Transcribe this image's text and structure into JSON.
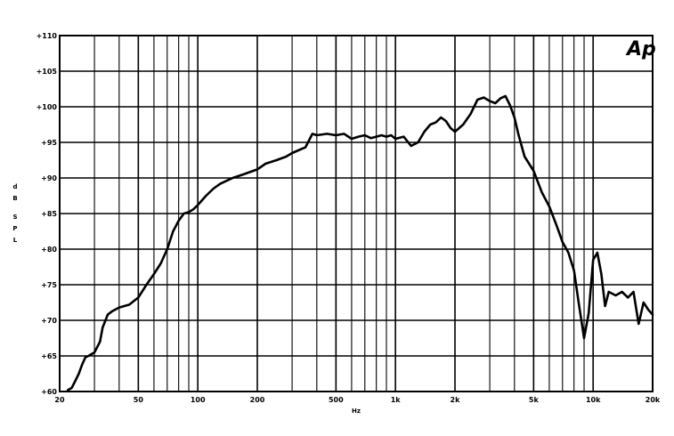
{
  "chart_data": {
    "type": "line",
    "logo": "Ap",
    "xlabel": "Hz",
    "ylabel": "dB SPL",
    "xscale": "log",
    "xlim": [
      20,
      20000
    ],
    "ylim": [
      60,
      110
    ],
    "grid": true,
    "yticks": [
      {
        "value": 60,
        "label": "+60"
      },
      {
        "value": 65,
        "label": "+65"
      },
      {
        "value": 70,
        "label": "+70"
      },
      {
        "value": 75,
        "label": "+75"
      },
      {
        "value": 80,
        "label": "+80"
      },
      {
        "value": 85,
        "label": "+85"
      },
      {
        "value": 90,
        "label": "+90"
      },
      {
        "value": 95,
        "label": "+95"
      },
      {
        "value": 100,
        "label": "+100"
      },
      {
        "value": 105,
        "label": "+105"
      },
      {
        "value": 110,
        "label": "+110"
      }
    ],
    "xticks": [
      {
        "value": 20,
        "label": "20"
      },
      {
        "value": 50,
        "label": "50"
      },
      {
        "value": 100,
        "label": "100"
      },
      {
        "value": 200,
        "label": "200"
      },
      {
        "value": 500,
        "label": "500"
      },
      {
        "value": 1000,
        "label": "1k"
      },
      {
        "value": 2000,
        "label": "2k"
      },
      {
        "value": 5000,
        "label": "5k"
      },
      {
        "value": 10000,
        "label": "10k"
      },
      {
        "value": 20000,
        "label": "20k"
      }
    ],
    "series": [
      {
        "x": [
          22,
          23,
          24,
          25,
          26,
          27,
          28,
          30,
          32,
          33,
          35,
          37,
          40,
          45,
          50,
          55,
          60,
          65,
          70,
          75,
          80,
          85,
          90,
          95,
          100,
          110,
          120,
          130,
          150,
          170,
          200,
          220,
          250,
          280,
          300,
          330,
          350,
          380,
          400,
          450,
          500,
          550,
          600,
          650,
          700,
          750,
          800,
          850,
          900,
          950,
          1000,
          1100,
          1200,
          1300,
          1400,
          1500,
          1600,
          1700,
          1800,
          1900,
          2000,
          2200,
          2400,
          2600,
          2800,
          3000,
          3200,
          3400,
          3600,
          3800,
          4000,
          4200,
          4500,
          5000,
          5500,
          6000,
          6500,
          7000,
          7500,
          8000,
          8500,
          9000,
          9500,
          10000,
          10500,
          11000,
          11500,
          12000,
          13000,
          14000,
          15000,
          16000,
          17000,
          18000,
          19000,
          20000
        ],
        "y": [
          60.2,
          60.5,
          61.5,
          62.5,
          63.8,
          64.8,
          65.0,
          65.5,
          67.0,
          69.0,
          70.8,
          71.3,
          71.8,
          72.2,
          73.2,
          75.0,
          76.5,
          78.0,
          80.0,
          82.5,
          84.0,
          85.0,
          85.2,
          85.6,
          86.2,
          87.5,
          88.5,
          89.2,
          90.0,
          90.5,
          91.2,
          92.0,
          92.5,
          93.0,
          93.5,
          94.0,
          94.3,
          96.2,
          96.0,
          96.2,
          96.0,
          96.2,
          95.5,
          95.8,
          96.0,
          95.6,
          95.8,
          96.0,
          95.8,
          96.0,
          95.5,
          95.8,
          94.5,
          95.0,
          96.5,
          97.5,
          97.8,
          98.5,
          98.0,
          97.0,
          96.5,
          97.5,
          99.0,
          101.0,
          101.3,
          100.8,
          100.5,
          101.2,
          101.5,
          100.2,
          98.5,
          96.0,
          93.0,
          91.0,
          88.0,
          86.0,
          83.5,
          81.0,
          79.5,
          77.0,
          72.0,
          67.5,
          71.0,
          78.5,
          79.5,
          76.5,
          72.0,
          74.0,
          73.5,
          74.0,
          73.2,
          74.0,
          69.5,
          72.5,
          71.5,
          70.8
        ]
      }
    ]
  }
}
